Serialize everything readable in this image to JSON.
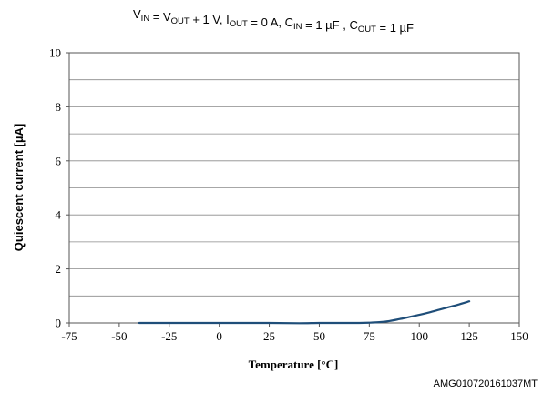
{
  "chart_data": {
    "type": "line",
    "title": {
      "parts": [
        {
          "t": "V",
          "sub": false
        },
        {
          "t": "IN",
          "sub": true
        },
        {
          "t": " = V",
          "sub": false
        },
        {
          "t": "OUT",
          "sub": true
        },
        {
          "t": " + 1 V, I",
          "sub": false
        },
        {
          "t": "OUT",
          "sub": true
        },
        {
          "t": " = 0 A, C",
          "sub": false
        },
        {
          "t": "IN",
          "sub": true
        },
        {
          "t": " = 1 µF , C",
          "sub": false
        },
        {
          "t": "OUT",
          "sub": true
        },
        {
          "t": " = 1 µF",
          "sub": false
        }
      ]
    },
    "xlabel": "Temperature [°C]",
    "ylabel": "Quiescent current [µA]",
    "xlim": [
      -75,
      150
    ],
    "ylim": [
      0,
      10
    ],
    "xticks": [
      -75,
      -50,
      -25,
      0,
      25,
      50,
      75,
      100,
      125,
      150
    ],
    "yticks": [
      0,
      2,
      4,
      6,
      8,
      10
    ],
    "ygrid": [
      1,
      2,
      3,
      4,
      5,
      6,
      7,
      8,
      9,
      10
    ],
    "grid": "horizontal",
    "series": [
      {
        "color": "#1f4e79",
        "x": [
          -40,
          -25,
          0,
          25,
          40,
          50,
          60,
          70,
          75,
          80,
          85,
          90,
          95,
          100,
          105,
          110,
          115,
          120,
          125
        ],
        "y": [
          0,
          0,
          0,
          0,
          -0.01,
          0,
          0,
          0,
          0.01,
          0.03,
          0.07,
          0.14,
          0.22,
          0.3,
          0.39,
          0.49,
          0.59,
          0.69,
          0.8
        ]
      }
    ]
  },
  "figure_code": "AMG010720161037MT"
}
